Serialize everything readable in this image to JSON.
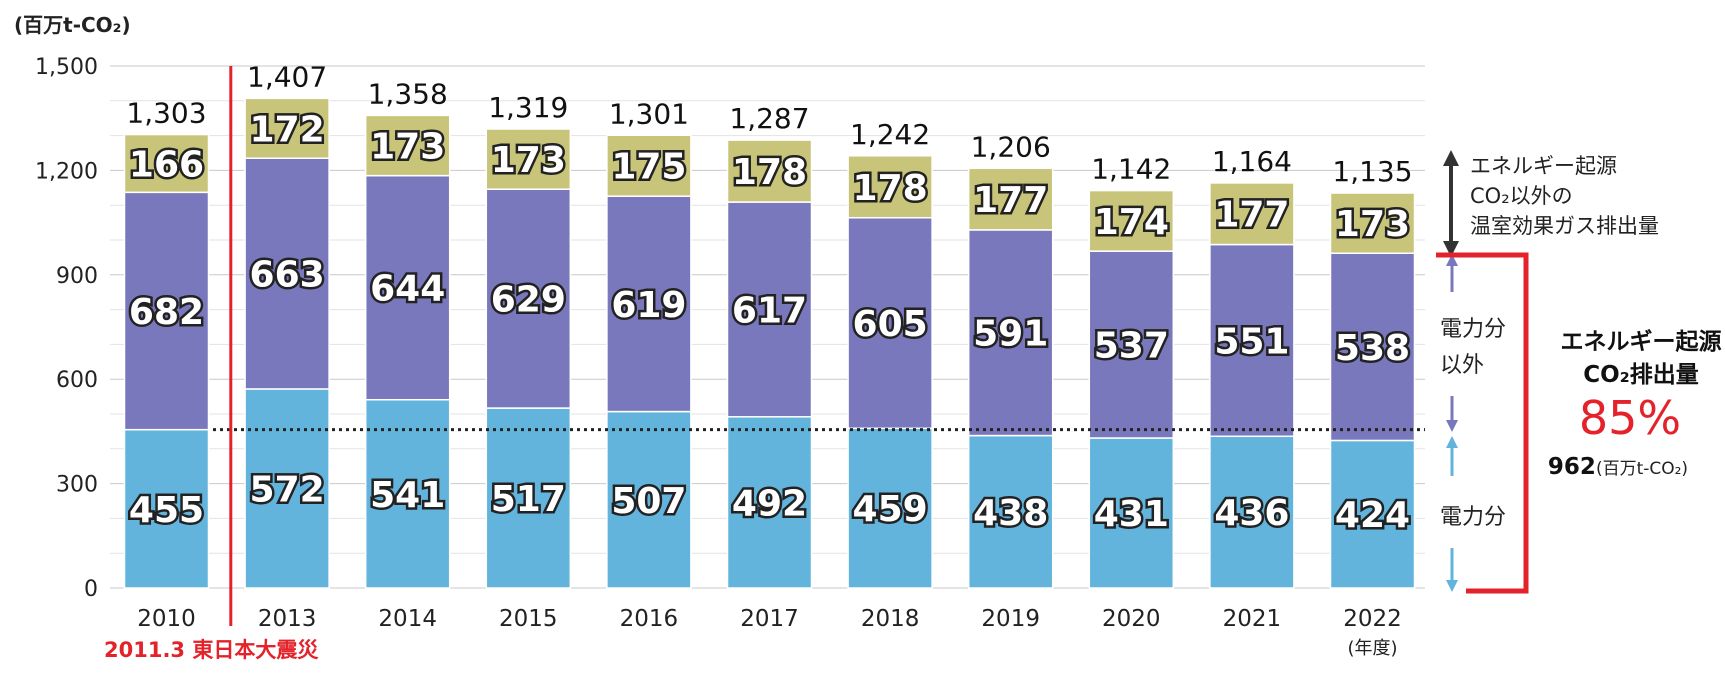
{
  "chart_data": {
    "type": "bar",
    "stacked": true,
    "unit_label": "(百万t-CO₂)",
    "categories": [
      "2010",
      "2013",
      "2014",
      "2015",
      "2016",
      "2017",
      "2018",
      "2019",
      "2020",
      "2021",
      "2022"
    ],
    "x_unit_suffix": "(年度)",
    "ylim": [
      0,
      1500
    ],
    "yticks": [
      "0",
      "300",
      "600",
      "900",
      "1,200",
      "1,500"
    ],
    "ytick_values": [
      0,
      300,
      600,
      900,
      1200,
      1500
    ],
    "series": [
      {
        "key": "electric",
        "values": [
          455,
          572,
          541,
          517,
          507,
          492,
          459,
          438,
          431,
          436,
          424
        ],
        "color": "#62b4dc"
      },
      {
        "key": "non_electric",
        "values": [
          682,
          663,
          644,
          629,
          619,
          617,
          605,
          591,
          537,
          551,
          538
        ],
        "color": "#7a78bc"
      },
      {
        "key": "non_energy_ghg",
        "values": [
          166,
          172,
          173,
          173,
          175,
          178,
          178,
          177,
          174,
          177,
          173
        ],
        "color": "#c8c47a"
      }
    ],
    "totals": [
      "1,303",
      "1,407",
      "1,358",
      "1,319",
      "1,301",
      "1,287",
      "1,242",
      "1,206",
      "1,142",
      "1,164",
      "1,135"
    ],
    "grid": true,
    "reference_line_value": 455,
    "event_marker": {
      "between": [
        "2010",
        "2013"
      ],
      "label": "2011.3 東日本大震災",
      "color": "#e3222a"
    },
    "annotations": {
      "non_energy": [
        "エネルギー起源",
        "CO₂以外の",
        "温室効果ガス排出量"
      ],
      "non_electric": [
        "電力分",
        "以外"
      ],
      "electric": "電力分",
      "energy_title_1": "エネルギー起源",
      "energy_title_2": "CO₂排出量",
      "energy_pct": "85%",
      "energy_value": "962",
      "energy_value_unit": "(百万t-CO₂)"
    }
  }
}
